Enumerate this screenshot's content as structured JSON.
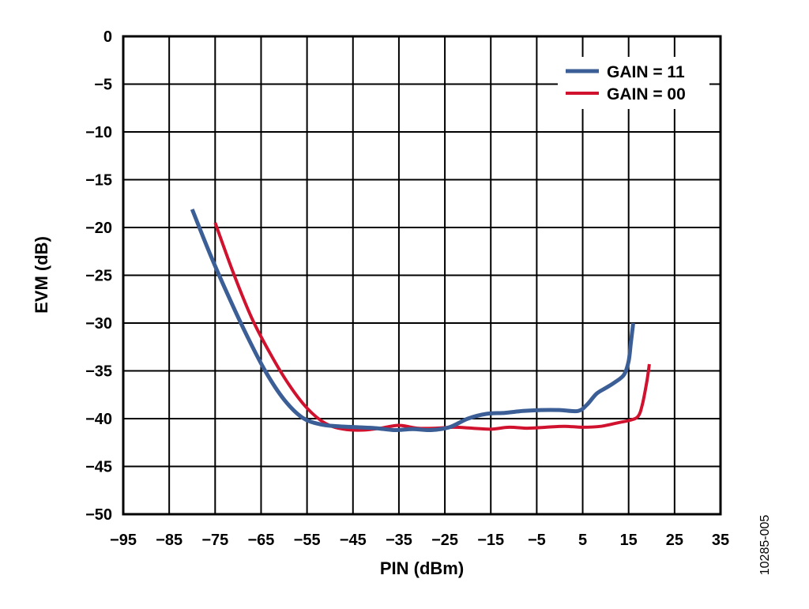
{
  "chart_data": {
    "type": "line",
    "xlabel": "PIN (dBm)",
    "ylabel": "EVM (dB)",
    "xlim": [
      -95,
      35
    ],
    "ylim": [
      -50,
      0
    ],
    "xticks": [
      -95,
      -85,
      -75,
      -65,
      -55,
      -45,
      -35,
      -25,
      -15,
      -5,
      5,
      15,
      25,
      35
    ],
    "yticks": [
      0,
      -5,
      -10,
      -15,
      -20,
      -25,
      -30,
      -35,
      -40,
      -45,
      -50
    ],
    "xtick_labels": [
      "−95",
      "−85",
      "−75",
      "−65",
      "−55",
      "−45",
      "−35",
      "−25",
      "−15",
      "−5",
      "5",
      "15",
      "25",
      "35"
    ],
    "ytick_labels": [
      "0",
      "−5",
      "−10",
      "−15",
      "−20",
      "−25",
      "−30",
      "−35",
      "−40",
      "−45",
      "−50"
    ],
    "grid": true,
    "legend_position": "top-right",
    "figure_id": "10285-005",
    "series": [
      {
        "name": "GAIN = 11",
        "color": "#3A5E95",
        "x": [
          -80,
          -76,
          -72,
          -68,
          -64,
          -60,
          -56,
          -52,
          -48,
          -44,
          -40,
          -36,
          -32,
          -28,
          -24,
          -20,
          -16,
          -12,
          -8,
          -4,
          0,
          4,
          6,
          8,
          10,
          12,
          14,
          15,
          15.5,
          16
        ],
        "y": [
          -18.1,
          -22.9,
          -27.3,
          -31.4,
          -35.1,
          -38.0,
          -39.9,
          -40.6,
          -40.8,
          -40.9,
          -41.0,
          -41.2,
          -41.1,
          -41.2,
          -40.9,
          -40.0,
          -39.5,
          -39.4,
          -39.2,
          -39.1,
          -39.1,
          -39.2,
          -38.5,
          -37.4,
          -36.8,
          -36.2,
          -35.4,
          -34.0,
          -32.0,
          -30.0
        ]
      },
      {
        "name": "GAIN = 00",
        "color": "#D1122F",
        "x": [
          -75,
          -71,
          -67,
          -63,
          -59,
          -55,
          -51,
          -47,
          -43,
          -39,
          -35,
          -31,
          -27,
          -23,
          -19,
          -15,
          -11,
          -7,
          -3,
          1,
          5,
          9,
          13,
          15,
          17,
          18,
          19,
          19.5
        ],
        "y": [
          -19.5,
          -24.8,
          -29.5,
          -33.2,
          -36.4,
          -38.9,
          -40.5,
          -41.1,
          -41.2,
          -41.0,
          -40.7,
          -41.0,
          -41.0,
          -40.9,
          -41.0,
          -41.1,
          -40.9,
          -41.0,
          -40.9,
          -40.8,
          -40.9,
          -40.8,
          -40.4,
          -40.2,
          -39.8,
          -38.5,
          -36.0,
          -34.3
        ]
      }
    ]
  }
}
